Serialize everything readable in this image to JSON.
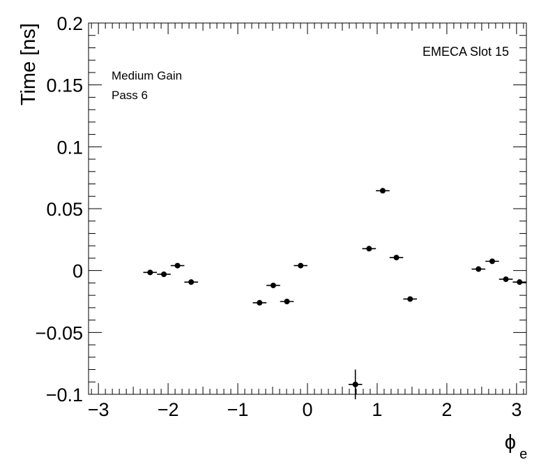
{
  "chart_data": {
    "type": "scatter",
    "title": "",
    "xlabel": "ϕ",
    "xlabel_subscript": "e",
    "ylabel": "Time [ns]",
    "xlim": [
      -3.1416,
      3.1416
    ],
    "ylim": [
      -0.1,
      0.2
    ],
    "grid": false,
    "x_ticks": [
      -3,
      -2,
      -1,
      0,
      1,
      2,
      3
    ],
    "x_tick_labels": [
      "−3",
      "−2",
      "−1",
      "0",
      "1",
      "2",
      "3"
    ],
    "y_ticks": [
      -0.1,
      -0.05,
      0,
      0.05,
      0.1,
      0.15,
      0.2
    ],
    "y_tick_labels": [
      "−0.1",
      "−0.05",
      "0",
      "0.05",
      "0.1",
      "0.15",
      "0.2"
    ],
    "annotations": [
      "Medium Gain",
      "Pass 6",
      "EMECA Slot 15"
    ],
    "x_error_halfwidth": 0.098,
    "points": [
      {
        "x": -2.258,
        "y": -0.0015,
        "yerr": 0.0016
      },
      {
        "x": -2.061,
        "y": -0.003,
        "yerr": 0.0016
      },
      {
        "x": -1.865,
        "y": 0.004,
        "yerr": 0.0016
      },
      {
        "x": -1.669,
        "y": -0.0093,
        "yerr": 0.0016
      },
      {
        "x": -0.687,
        "y": -0.026,
        "yerr": 0.0016
      },
      {
        "x": -0.491,
        "y": -0.012,
        "yerr": 0.0016
      },
      {
        "x": -0.295,
        "y": -0.025,
        "yerr": 0.0016
      },
      {
        "x": -0.098,
        "y": 0.004,
        "yerr": 0.0016
      },
      {
        "x": 0.687,
        "y": -0.092,
        "yerr": 0.012
      },
      {
        "x": 0.884,
        "y": 0.0177,
        "yerr": 0.0016
      },
      {
        "x": 1.08,
        "y": 0.0645,
        "yerr": 0.0016
      },
      {
        "x": 1.276,
        "y": 0.0105,
        "yerr": 0.0016
      },
      {
        "x": 1.473,
        "y": -0.023,
        "yerr": 0.0016
      },
      {
        "x": 2.454,
        "y": 0.0012,
        "yerr": 0.0016
      },
      {
        "x": 2.651,
        "y": 0.0075,
        "yerr": 0.0016
      },
      {
        "x": 2.847,
        "y": -0.007,
        "yerr": 0.0016
      },
      {
        "x": 3.043,
        "y": -0.0093,
        "yerr": 0.0016
      }
    ]
  }
}
